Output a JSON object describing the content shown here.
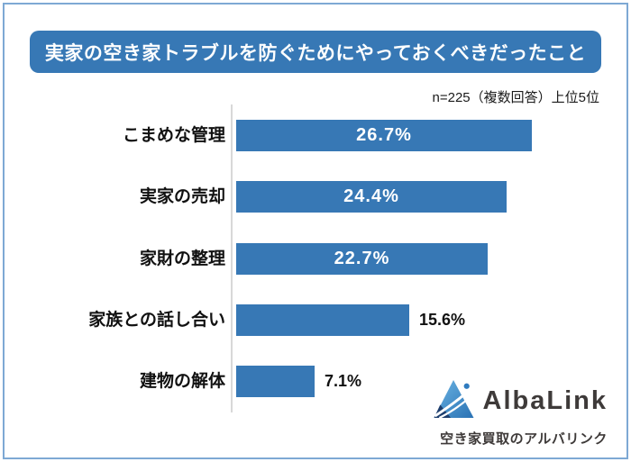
{
  "title": {
    "text": "実家の空き家トラブルを防ぐためにやっておくべきだったこと",
    "bg_color": "#3778b5",
    "text_color": "#ffffff"
  },
  "note": "n=225（複数回答）上位5位",
  "chart_data": {
    "type": "bar",
    "orientation": "horizontal",
    "title": "実家の空き家トラブルを防ぐためにやっておくべきだったこと",
    "note": "n=225（複数回答）上位5位",
    "categories": [
      "こまめな管理",
      "実家の売却",
      "家財の整理",
      "家族との話し合い",
      "建物の解体"
    ],
    "values": [
      26.7,
      24.4,
      22.7,
      15.6,
      7.1
    ],
    "value_labels": [
      "26.7%",
      "24.4%",
      "22.7%",
      "15.6%",
      "7.1%"
    ],
    "value_label_placement": [
      "inside",
      "inside",
      "inside",
      "outside",
      "outside"
    ],
    "bar_color": "#3778b5",
    "axis_line_color": "#d8d8d8",
    "xlim": [
      0,
      27.5
    ],
    "grid": false,
    "legend": false
  },
  "frame": {
    "border_color": "#7ea9d4"
  },
  "logo": {
    "name": "AlbaLink",
    "tagline": "空き家買取のアルバリンク",
    "text_color": "#3e3a39",
    "icon": "mountain-swoosh-triangle",
    "icon_colors": {
      "light_blue": "#5fb0e2",
      "mid_blue": "#2a72b4",
      "dark_navy": "#1d3e6e"
    }
  }
}
